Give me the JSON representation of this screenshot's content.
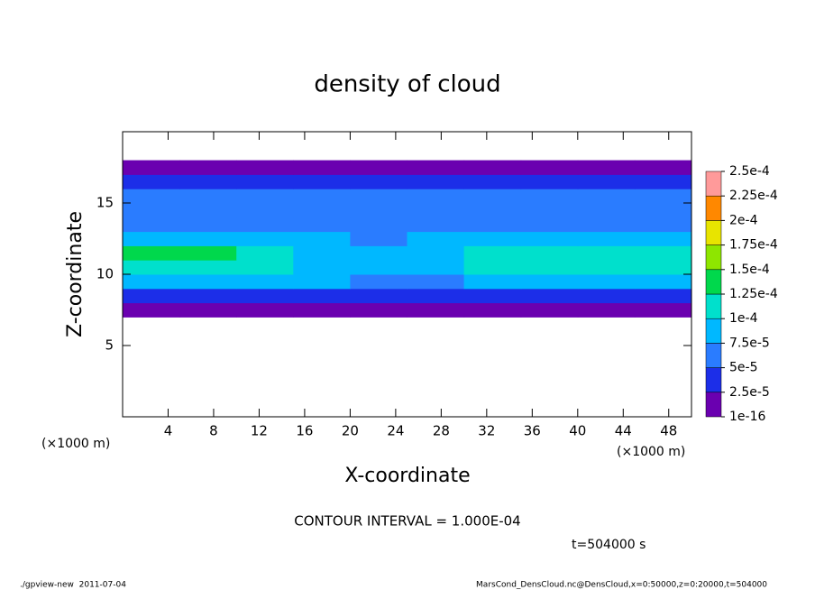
{
  "chart_data": {
    "type": "heatmap",
    "title": "density of cloud",
    "xlabel": "X-coordinate",
    "ylabel": "Z-coordinate",
    "x_unit": "(×1000 m)",
    "y_unit": "(×1000 m)",
    "contour_note": "CONTOUR INTERVAL = 1.000E-04",
    "time_label": "t=504000 s",
    "footer_left": "./gpview-new  2011-07-04",
    "footer_right": "MarsCond_DensCloud.nc@DensCloud,x=0:50000,z=0:20000,t=504000",
    "xlim": [
      0,
      50
    ],
    "ylim": [
      0,
      20
    ],
    "xticks": [
      4,
      8,
      12,
      16,
      20,
      24,
      28,
      32,
      36,
      40,
      44,
      48
    ],
    "yticks": [
      5,
      10,
      15
    ],
    "x": [
      2.5,
      7.5,
      12.5,
      17.5,
      22.5,
      27.5,
      32.5,
      37.5,
      42.5,
      47.5
    ],
    "z": [
      7.5,
      8.5,
      9.5,
      10.5,
      11.5,
      12.5,
      13.5,
      14.5,
      15.5,
      16.5,
      17.5
    ],
    "values": [
      [
        1e-05,
        1e-05,
        1e-05,
        1e-05,
        1e-05,
        1e-05,
        1e-05,
        1e-05,
        1e-05,
        1e-05
      ],
      [
        4e-05,
        4e-05,
        4e-05,
        4e-05,
        4e-05,
        4e-05,
        4e-05,
        4e-05,
        4e-05,
        4e-05
      ],
      [
        9e-05,
        8e-05,
        8e-05,
        8e-05,
        7e-05,
        7e-05,
        8e-05,
        8e-05,
        8e-05,
        8e-05
      ],
      [
        0.00012,
        0.00012,
        0.00011,
        9e-05,
        8e-05,
        9e-05,
        0.00011,
        0.00011,
        0.00012,
        0.00012
      ],
      [
        0.00013,
        0.00013,
        0.00011,
        9e-05,
        8e-05,
        9e-05,
        0.00011,
        0.00012,
        0.00011,
        0.00012
      ],
      [
        9e-05,
        9e-05,
        8e-05,
        8e-05,
        7e-05,
        8e-05,
        9e-05,
        9e-05,
        8e-05,
        8e-05
      ],
      [
        6e-05,
        7e-05,
        7e-05,
        7e-05,
        7e-05,
        6e-05,
        7e-05,
        6e-05,
        6e-05,
        6e-05
      ],
      [
        6e-05,
        5e-05,
        6e-05,
        6e-05,
        5e-05,
        5e-05,
        6e-05,
        5e-05,
        5e-05,
        6e-05
      ],
      [
        5e-05,
        5e-05,
        5e-05,
        5e-05,
        5e-05,
        5e-05,
        5e-05,
        5e-05,
        5e-05,
        5e-05
      ],
      [
        3e-05,
        3e-05,
        3e-05,
        3e-05,
        3e-05,
        3e-05,
        3e-05,
        3e-05,
        3e-05,
        3e-05
      ],
      [
        1e-05,
        1e-05,
        1e-05,
        1e-05,
        1e-05,
        1e-05,
        1e-05,
        1e-05,
        1e-05,
        1e-05
      ]
    ],
    "levels": [
      {
        "value": 1e-16,
        "label": "1e-16"
      },
      {
        "value": 2.5e-05,
        "label": "2.5e-5"
      },
      {
        "value": 5e-05,
        "label": "5e-5"
      },
      {
        "value": 7.5e-05,
        "label": "7.5e-5"
      },
      {
        "value": 0.0001,
        "label": "1e-4"
      },
      {
        "value": 0.000125,
        "label": "1.25e-4"
      },
      {
        "value": 0.00015,
        "label": "1.5e-4"
      },
      {
        "value": 0.000175,
        "label": "1.75e-4"
      },
      {
        "value": 0.0002,
        "label": "2e-4"
      },
      {
        "value": 0.000225,
        "label": "2.25e-4"
      },
      {
        "value": 0.00025,
        "label": "2.5e-4"
      }
    ],
    "colors": [
      "#6a00b0",
      "#1c2ee8",
      "#2a7cff",
      "#00b8ff",
      "#00e0cc",
      "#00d84c",
      "#8ee600",
      "#e8e400",
      "#ff8800",
      "#ff9a9a"
    ]
  }
}
